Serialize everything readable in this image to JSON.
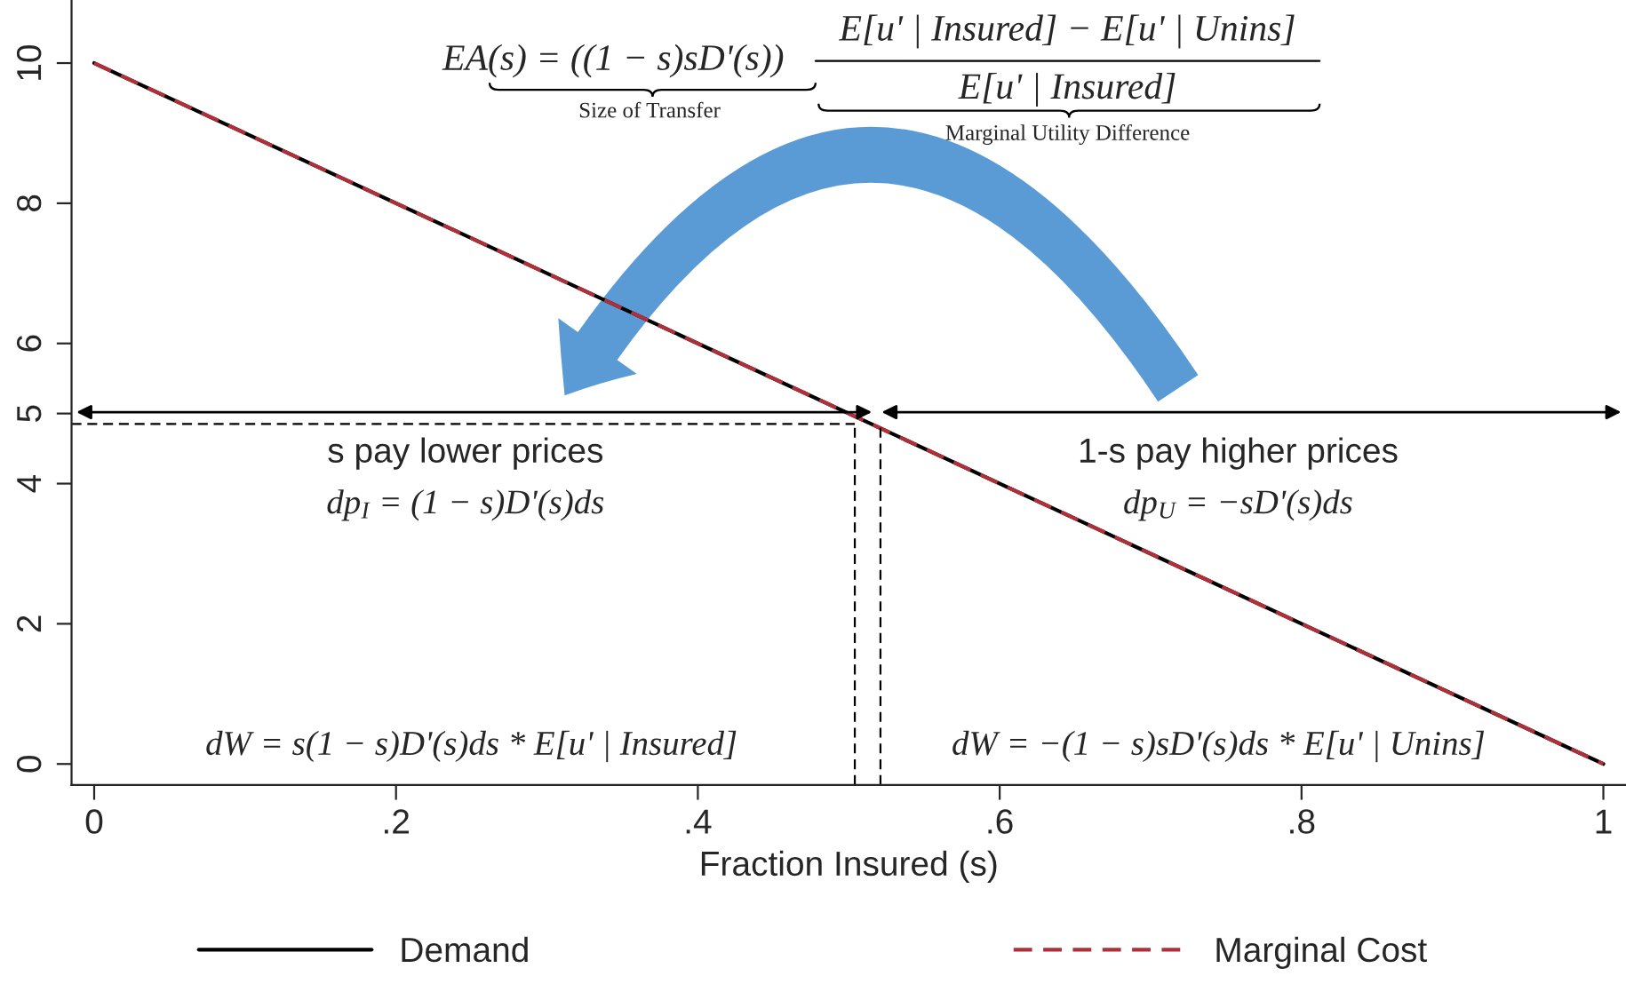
{
  "chart_data": {
    "type": "line",
    "xlabel": "Fraction Insured (s)",
    "xlim": [
      -0.015,
      1.015
    ],
    "ylim": [
      -0.3,
      10.9
    ],
    "xticks": [
      0,
      {
        "value": 0.2,
        "label": ".2"
      },
      {
        "value": 0.4,
        "label": ".4"
      },
      {
        "value": 0.6,
        "label": ".6"
      },
      {
        "value": 0.8,
        "label": ".8"
      },
      1
    ],
    "yticks": [
      0,
      2,
      4,
      5,
      6,
      8,
      10
    ],
    "grid": false,
    "legend": "bottom",
    "marker": "none",
    "series": [
      {
        "name": "Demand",
        "color": "#000000",
        "x": [
          0,
          1
        ],
        "values": [
          10,
          0
        ],
        "line_style": "solid"
      },
      {
        "name": "Marginal Cost",
        "color": "#b0303a",
        "x": [
          0,
          1
        ],
        "values": [
          10,
          0
        ],
        "line_style": "dashed"
      },
      {
        "color": "#000000",
        "x": [
          -0.015,
          0.504
        ],
        "values": [
          4.85,
          4.85
        ],
        "line_style": "dashed"
      },
      {
        "color": "#000000",
        "x": [
          0.504,
          0.504
        ],
        "values": [
          -0.3,
          4.85
        ],
        "line_style": "dashed"
      },
      {
        "color": "#000000",
        "x": [
          0.521,
          0.521
        ],
        "values": [
          -0.3,
          4.85
        ],
        "line_style": "dashed"
      }
    ],
    "annotations": [
      "EA(s) = ((1 − s)sD'(s))",
      "E[u' | Insured] − E[u' | Unins]",
      "E[u' | Insured]",
      "Size of Transfer",
      "Marginal Utility Difference",
      "s pay lower prices",
      "dp$_{I}$ = (1 − s)D'(s)ds",
      "1-s pay higher prices",
      "dp$_{U}$ = −sD'(s)ds",
      "dW = s(1 − s)D'(s)ds * E[u' | Insured]",
      "dW = −(1 − s)sD'(s)ds * E[u' | Unins]"
    ]
  }
}
